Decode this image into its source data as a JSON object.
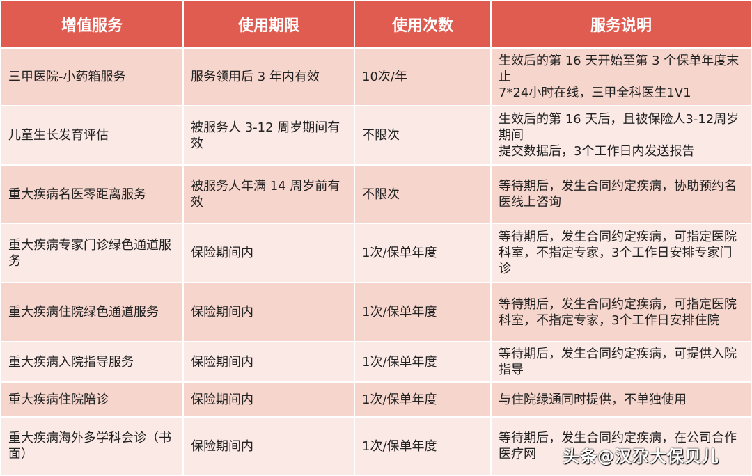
{
  "headers": [
    "增值服务",
    "使用期限",
    "使用次数",
    "服务说明"
  ],
  "rows": [
    {
      "service": "三甲医院-小药箱服务",
      "period": "服务领用后 3 年内有效",
      "times": "10次/年",
      "desc": [
        "生效后的第 16 天开始至第 3 个保单年度末止",
        "7*24小时在线，三甲全科医生1V1"
      ]
    },
    {
      "service": "儿童生长发育评估",
      "period": "被服务人 3-12 周岁期间有效",
      "times": "不限次",
      "desc": [
        "生效后的第 16 天后，且被保险人3-12周岁期间",
        "提交数据后，3个工作日内发送报告"
      ]
    },
    {
      "service": "重大疾病名医零距离服务",
      "period": "被服务人年满 14 周岁前有效",
      "times": "不限次",
      "desc": [
        "等待期后，发生合同约定疾病，协助预约名医线上咨询"
      ]
    },
    {
      "service": "重大疾病专家门诊绿色通道服务",
      "period": "保险期间内",
      "times": "1次/保单年度",
      "desc": [
        "等待期后，发生合同约定疾病，可指定医院科室，不指定专家，3个工作日安排专家门诊"
      ]
    },
    {
      "service": "重大疾病住院绿色通道服务",
      "period": "保险期间内",
      "times": "1次/保单年度",
      "desc": [
        "等待期后，发生合同约定疾病，可指定医院科室，不指定专家，3个工作日安排住院"
      ]
    },
    {
      "service": "重大疾病入院指导服务",
      "period": "保险期间内",
      "times": "1次/保单年度",
      "desc": [
        "等待期后，发生合同约定疾病，可提供入院指导"
      ]
    },
    {
      "service": "重大疾病住院陪诊",
      "period": "保险期间内",
      "times": "1次/保单年度",
      "desc": [
        "与住院绿通同时提供，不单独使用"
      ]
    },
    {
      "service": "重大疾病海外多学科会诊（书面）",
      "period": "保险期间内",
      "times": "1次/保单年度",
      "desc": [
        "等待期后，发生合同约定疾病，在公司合作医疗网"
      ]
    }
  ],
  "watermark": "头条@汉尕大保贝儿",
  "colors": {
    "header": "#e05c50",
    "row_odd": "#f6d5cc",
    "row_even": "#fbe9e5"
  }
}
